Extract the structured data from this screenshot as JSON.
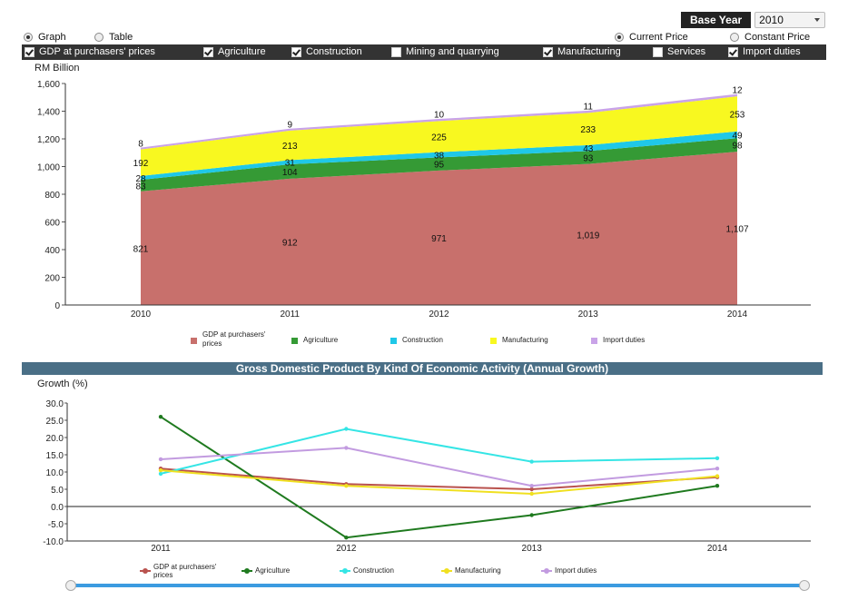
{
  "controls": {
    "base_year_label": "Base Year",
    "base_year_value": "2010",
    "view_options": [
      {
        "label": "Graph",
        "selected": true
      },
      {
        "label": "Table",
        "selected": false
      }
    ],
    "price_options": [
      {
        "label": "Current Price",
        "selected": true
      },
      {
        "label": "Constant Price",
        "selected": false
      }
    ],
    "series_toggles": [
      {
        "label": "GDP at purchasers' prices",
        "checked": true
      },
      {
        "label": "Agriculture",
        "checked": true
      },
      {
        "label": "Construction",
        "checked": true
      },
      {
        "label": "Mining and quarrying",
        "checked": false
      },
      {
        "label": "Manufacturing",
        "checked": true
      },
      {
        "label": "Services",
        "checked": false
      },
      {
        "label": "Import duties",
        "checked": true
      }
    ]
  },
  "section_title": "Gross Domestic Product By Kind Of Economic Activity (Annual Growth)",
  "chart_data": [
    {
      "type": "area",
      "stacked": true,
      "ylabel": "RM Billion",
      "ylim": [
        0,
        1600
      ],
      "yticks": [
        "0",
        "200",
        "400",
        "600",
        "800",
        "1,000",
        "1,200",
        "1,400",
        "1,600"
      ],
      "categories": [
        "2010",
        "2011",
        "2012",
        "2013",
        "2014"
      ],
      "series": [
        {
          "name": "GDP at purchasers' prices",
          "color": "#c8706c",
          "values": [
            821,
            912,
            971,
            1019,
            1107
          ],
          "labels": [
            "821",
            "912",
            "971",
            "1,019",
            "1,107"
          ]
        },
        {
          "name": "Agriculture",
          "color": "#359a35",
          "values": [
            83,
            104,
            95,
            93,
            98
          ],
          "labels": [
            "83",
            "104",
            "95",
            "93",
            "98"
          ]
        },
        {
          "name": "Construction",
          "color": "#1fc8e8",
          "values": [
            28,
            31,
            38,
            43,
            49
          ],
          "labels": [
            "28",
            "31",
            "38",
            "43",
            "49"
          ]
        },
        {
          "name": "Manufacturing",
          "color": "#f8f820",
          "values": [
            192,
            213,
            225,
            233,
            253
          ],
          "labels": [
            "192",
            "213",
            "225",
            "233",
            "253"
          ]
        },
        {
          "name": "Import duties",
          "color": "#c9a3e8",
          "values": [
            8,
            9,
            10,
            11,
            12
          ],
          "labels": [
            "8",
            "9",
            "10",
            "11",
            "12"
          ]
        }
      ],
      "legend_position": "bottom"
    },
    {
      "type": "line",
      "ylabel": "Growth (%)",
      "ylim": [
        -10,
        30
      ],
      "yticks": [
        "-10.0",
        "-5.0",
        "0.0",
        "5.0",
        "10.0",
        "15.0",
        "20.0",
        "25.0",
        "30.0"
      ],
      "categories": [
        "2011",
        "2012",
        "2013",
        "2014"
      ],
      "series": [
        {
          "name": "GDP at purchasers' prices",
          "color": "#b9524e",
          "values": [
            11.0,
            6.5,
            5.0,
            8.5
          ]
        },
        {
          "name": "Agriculture",
          "color": "#1f7a1f",
          "values": [
            26.0,
            -9.0,
            -2.5,
            6.0
          ]
        },
        {
          "name": "Construction",
          "color": "#35e5e5",
          "values": [
            9.5,
            22.5,
            13.0,
            14.0
          ]
        },
        {
          "name": "Manufacturing",
          "color": "#f0e020",
          "values": [
            10.5,
            6.0,
            3.7,
            8.8
          ]
        },
        {
          "name": "Import duties",
          "color": "#c29be0",
          "values": [
            13.7,
            17.0,
            6.0,
            11.0
          ]
        }
      ],
      "legend_position": "bottom"
    }
  ]
}
